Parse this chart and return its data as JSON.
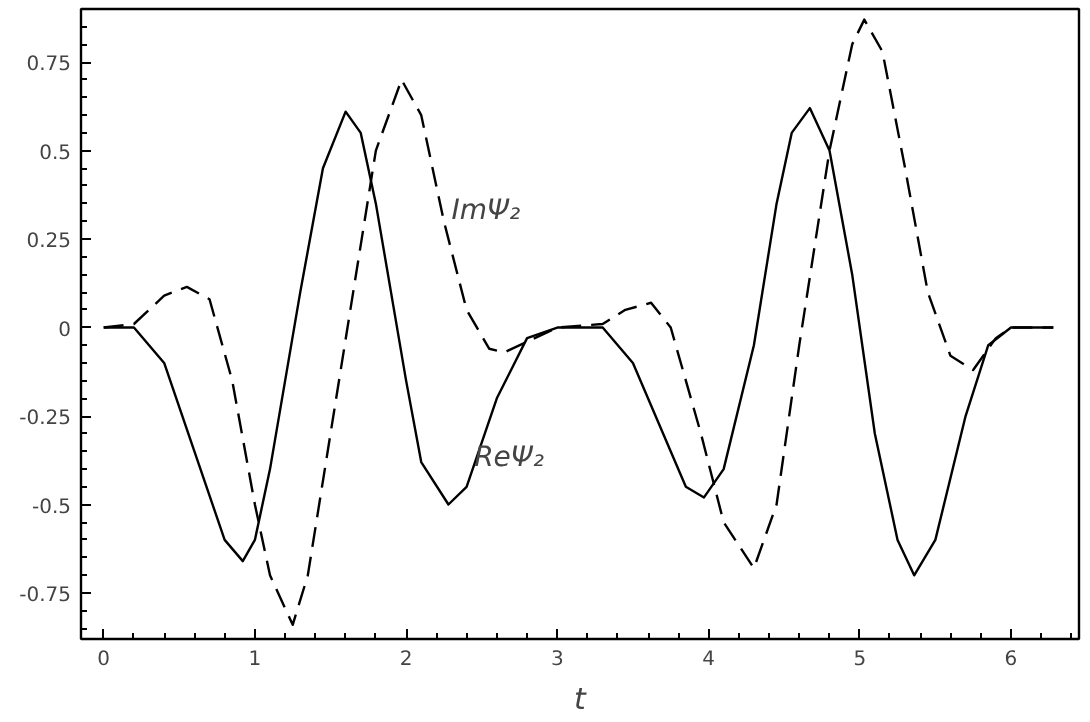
{
  "chart_data": {
    "type": "line",
    "xlabel": "t",
    "xlim": [
      -0.15,
      6.45
    ],
    "ylim": [
      -0.88,
      0.9
    ],
    "xticks": [
      0,
      1,
      2,
      3,
      4,
      5,
      6
    ],
    "yticks": [
      -0.75,
      -0.5,
      -0.25,
      0,
      0.25,
      0.5,
      0.75
    ],
    "grid": false,
    "marker": "none",
    "series": [
      {
        "color": "#000000",
        "line_style": "solid",
        "x": [
          0,
          0.2,
          0.4,
          0.6,
          0.8,
          0.92,
          1.0,
          1.1,
          1.3,
          1.45,
          1.6,
          1.7,
          1.8,
          1.9,
          2.0,
          2.1,
          2.28,
          2.4,
          2.6,
          2.8,
          3.0,
          3.3,
          3.5,
          3.7,
          3.85,
          3.97,
          4.1,
          4.3,
          4.45,
          4.55,
          4.67,
          4.8,
          4.95,
          5.1,
          5.25,
          5.36,
          5.5,
          5.7,
          5.85,
          6.0,
          6.28
        ],
        "values": [
          0,
          0,
          -0.1,
          -0.35,
          -0.6,
          -0.66,
          -0.6,
          -0.4,
          0.1,
          0.45,
          0.61,
          0.55,
          0.35,
          0.1,
          -0.15,
          -0.38,
          -0.5,
          -0.45,
          -0.2,
          -0.03,
          0,
          0,
          -0.1,
          -0.3,
          -0.45,
          -0.48,
          -0.4,
          -0.05,
          0.35,
          0.55,
          0.62,
          0.5,
          0.15,
          -0.3,
          -0.6,
          -0.7,
          -0.6,
          -0.25,
          -0.05,
          0,
          0
        ]
      },
      {
        "color": "#000000",
        "line_style": "dashed",
        "x": [
          0,
          0.2,
          0.4,
          0.55,
          0.7,
          0.85,
          1.0,
          1.1,
          1.25,
          1.35,
          1.5,
          1.65,
          1.8,
          1.97,
          2.1,
          2.25,
          2.4,
          2.55,
          2.65,
          2.8,
          3.0,
          3.3,
          3.45,
          3.62,
          3.75,
          3.95,
          4.1,
          4.3,
          4.45,
          4.6,
          4.8,
          4.95,
          5.03,
          5.15,
          5.3,
          5.45,
          5.6,
          5.75,
          5.9,
          6.0,
          6.28
        ],
        "values": [
          0,
          0.01,
          0.09,
          0.115,
          0.08,
          -0.15,
          -0.5,
          -0.7,
          -0.84,
          -0.7,
          -0.3,
          0.1,
          0.5,
          0.7,
          0.6,
          0.3,
          0.05,
          -0.06,
          -0.07,
          -0.04,
          0,
          0.01,
          0.05,
          0.07,
          0,
          -0.3,
          -0.55,
          -0.68,
          -0.5,
          -0.05,
          0.5,
          0.8,
          0.87,
          0.78,
          0.45,
          0.1,
          -0.08,
          -0.12,
          -0.03,
          0,
          0
        ]
      }
    ],
    "annotations": [
      {
        "text": "ImΨ₂",
        "x": 2.3,
        "y": 0.33
      },
      {
        "text": "ReΨ₂",
        "x": 2.45,
        "y": -0.37
      }
    ]
  }
}
